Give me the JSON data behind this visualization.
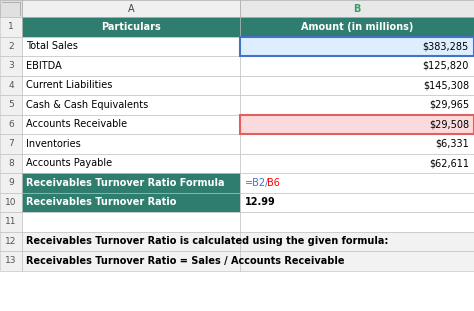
{
  "col_header_bg": "#2E7D6E",
  "col_header_text": "#FFFFFF",
  "teal_row_bg": "#2E7D6E",
  "teal_row_text": "#FFFFFF",
  "highlight_blue_bg": "#DDEEFF",
  "highlight_red_bg": "#FADADD",
  "normal_bg": "#FFFFFF",
  "grid_color": "#BBBBBB",
  "note_bg": "#F2F2F2",
  "row_num_bg": "#F0F0F0",
  "col_header_letter_bg_a": "#F0F0F0",
  "col_header_letter_bg_b": "#E8E8E8",
  "col_b_selected_letter_color": "#3D9B6A",
  "formula_eq_b2_color": "#4472C4",
  "formula_b6_color": "#FF0000",
  "rows": [
    {
      "num": "1",
      "a": "Particulars",
      "b": "Amount (in millions)",
      "style": "header"
    },
    {
      "num": "2",
      "a": "Total Sales",
      "b": "$383,285",
      "style": "blue_b"
    },
    {
      "num": "3",
      "a": "EBITDA",
      "b": "$125,820",
      "style": "normal"
    },
    {
      "num": "4",
      "a": "Current Liabilities",
      "b": "$145,308",
      "style": "normal"
    },
    {
      "num": "5",
      "a": "Cash & Cash Equivalents",
      "b": "$29,965",
      "style": "normal"
    },
    {
      "num": "6",
      "a": "Accounts Receivable",
      "b": "$29,508",
      "style": "red_b"
    },
    {
      "num": "7",
      "a": "Inventories",
      "b": "$6,331",
      "style": "normal"
    },
    {
      "num": "8",
      "a": "Accounts Payable",
      "b": "$62,611",
      "style": "normal"
    },
    {
      "num": "9",
      "a": "Receivables Turnover Ratio Formula",
      "b": "=B2/B6",
      "style": "teal_formula"
    },
    {
      "num": "10",
      "a": "Receivables Turnover Ratio",
      "b": "12.99",
      "style": "teal"
    },
    {
      "num": "11",
      "a": "",
      "b": "",
      "style": "empty"
    },
    {
      "num": "12",
      "a": "Receivables Turnover Ratio is calculated using the given formula:",
      "b": "",
      "style": "bold_note"
    },
    {
      "num": "13",
      "a": "Receivables Turnover Ratio = Sales / Accounts Receivable",
      "b": "",
      "style": "bold_note"
    }
  ]
}
